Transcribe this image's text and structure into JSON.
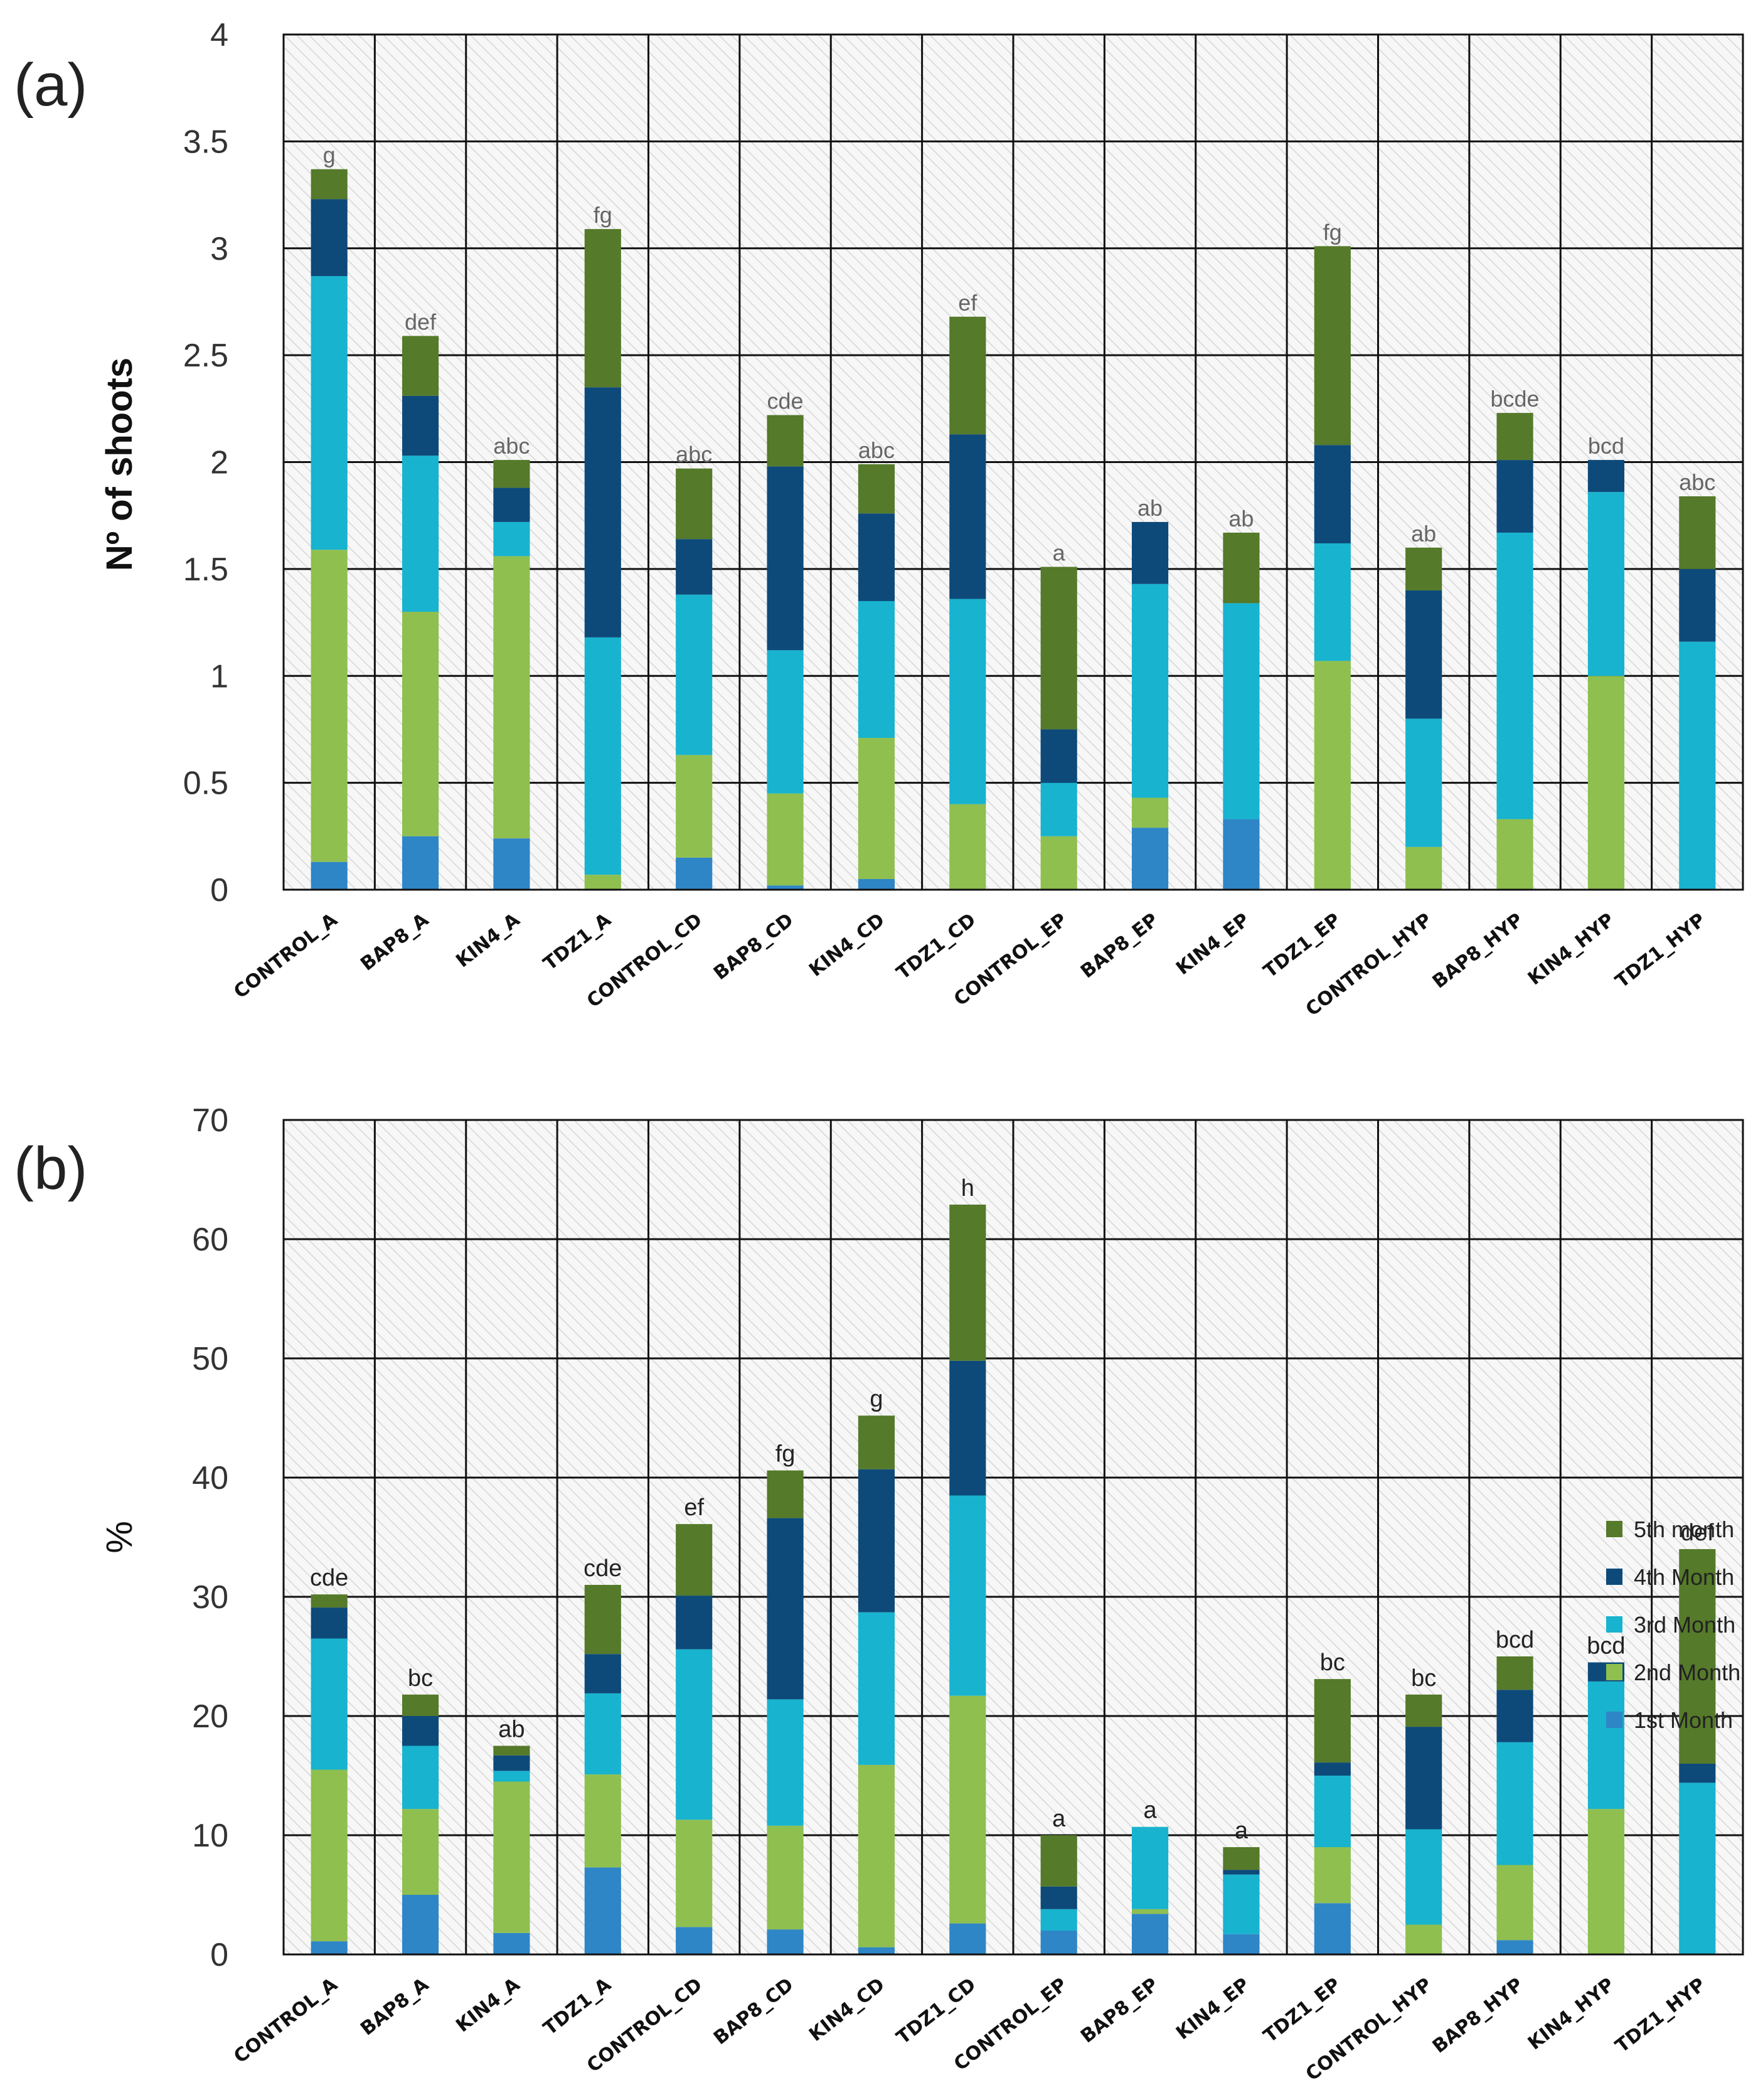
{
  "chart_data": [
    {
      "panel": "(a)",
      "type": "bar",
      "stacked": true,
      "title": "",
      "xlabel": "",
      "ylabel": "Nº of shoots",
      "ylim": [
        0,
        4
      ],
      "yticks": [
        "0",
        "0.5",
        "1",
        "1.5",
        "2",
        "2.5",
        "3",
        "3.5",
        "4"
      ],
      "grid": true,
      "categories": [
        "CONTROL_A",
        "BAP8_A",
        "KIN4_A",
        "TDZ1_A",
        "CONTROL_CD",
        "BAP8_CD",
        "KIN4_CD",
        "TDZ1_CD",
        "CONTROL_EP",
        "BAP8_EP",
        "KIN4_EP",
        "TDZ1_EP",
        "CONTROL_HYP",
        "BAP8_HYP",
        "KIN4_HYP",
        "TDZ1_HYP"
      ],
      "series": [
        {
          "name": "1st Month",
          "values": [
            0.13,
            0.25,
            0.24,
            0.0,
            0.15,
            0.02,
            0.05,
            0.0,
            0.0,
            0.29,
            0.33,
            0.0,
            0.0,
            0.0,
            0.0,
            0.0
          ]
        },
        {
          "name": "2nd Month",
          "values": [
            1.46,
            1.05,
            1.32,
            0.07,
            0.48,
            0.43,
            0.66,
            0.4,
            0.25,
            0.14,
            0.0,
            1.07,
            0.2,
            0.33,
            1.0,
            0.0
          ]
        },
        {
          "name": "3rd Month",
          "values": [
            1.28,
            0.73,
            0.16,
            1.11,
            0.75,
            0.67,
            0.64,
            0.96,
            0.25,
            1.0,
            1.01,
            0.55,
            0.6,
            1.34,
            0.86,
            1.16
          ]
        },
        {
          "name": "4th Month",
          "values": [
            0.36,
            0.28,
            0.16,
            1.17,
            0.26,
            0.86,
            0.41,
            0.77,
            0.25,
            0.29,
            0.0,
            0.46,
            0.6,
            0.34,
            0.15,
            0.34
          ]
        },
        {
          "name": "5th month",
          "values": [
            0.14,
            0.28,
            0.13,
            0.74,
            0.33,
            0.24,
            0.23,
            0.55,
            0.76,
            0.0,
            0.33,
            0.93,
            0.2,
            0.22,
            0.0,
            0.34
          ]
        }
      ],
      "annotations": [
        "g",
        "def",
        "abc",
        "fg",
        "abc",
        "cde",
        "abc",
        "ef",
        "a",
        "ab",
        "ab",
        "fg",
        "ab",
        "bcde",
        "bcd",
        "abc"
      ]
    },
    {
      "panel": "(b)",
      "type": "bar",
      "stacked": true,
      "title": "",
      "xlabel": "",
      "ylabel": "%",
      "ylim": [
        0,
        70
      ],
      "yticks": [
        "0",
        "10",
        "20",
        "30",
        "40",
        "50",
        "60",
        "70"
      ],
      "grid": true,
      "legend": "right",
      "categories": [
        "CONTROL_A",
        "BAP8_A",
        "KIN4_A",
        "TDZ1_A",
        "CONTROL_CD",
        "BAP8_CD",
        "KIN4_CD",
        "TDZ1_CD",
        "CONTROL_EP",
        "BAP8_EP",
        "KIN4_EP",
        "TDZ1_EP",
        "CONTROL_HYP",
        "BAP8_HYP",
        "KIN4_HYP",
        "TDZ1_HYP"
      ],
      "series": [
        {
          "name": "1st Month",
          "values": [
            1.1,
            5.0,
            1.8,
            7.3,
            2.3,
            2.1,
            0.6,
            2.6,
            2.0,
            3.4,
            1.7,
            4.3,
            0.0,
            1.2,
            0.0,
            0.0
          ]
        },
        {
          "name": "2nd Month",
          "values": [
            14.4,
            7.2,
            12.7,
            7.8,
            9.0,
            8.7,
            15.3,
            19.1,
            0.0,
            0.4,
            0.0,
            4.7,
            2.5,
            6.3,
            12.2,
            0.0
          ]
        },
        {
          "name": "3rd Month",
          "values": [
            11.0,
            5.3,
            0.9,
            6.8,
            14.3,
            10.6,
            12.8,
            16.8,
            1.8,
            6.9,
            5.0,
            6.0,
            8.0,
            10.3,
            10.7,
            14.4
          ]
        },
        {
          "name": "4th Month",
          "values": [
            2.6,
            2.5,
            1.3,
            3.3,
            4.5,
            15.2,
            12.0,
            11.3,
            1.9,
            0.0,
            0.4,
            1.1,
            8.6,
            4.4,
            1.6,
            1.6
          ]
        },
        {
          "name": "5th month",
          "values": [
            1.1,
            1.8,
            0.8,
            5.8,
            6.0,
            4.0,
            4.5,
            13.1,
            4.3,
            0.0,
            1.9,
            7.0,
            2.7,
            2.8,
            0.0,
            18.0
          ]
        }
      ],
      "annotations": [
        "cde",
        "bc",
        "ab",
        "cde",
        "ef",
        "fg",
        "g",
        "h",
        "a",
        "a",
        "a",
        "bc",
        "bc",
        "bcd",
        "bcd",
        "def"
      ],
      "legend_order": [
        "5th month",
        "4th Month",
        "3rd Month",
        "2nd Month",
        "1st Month"
      ]
    }
  ],
  "colors": {
    "1st Month": "#2e86c6",
    "2nd Month": "#8fbf4f",
    "3rd Month": "#18b3cf",
    "4th Month": "#0d4a7a",
    "5th month": "#557a2a"
  }
}
